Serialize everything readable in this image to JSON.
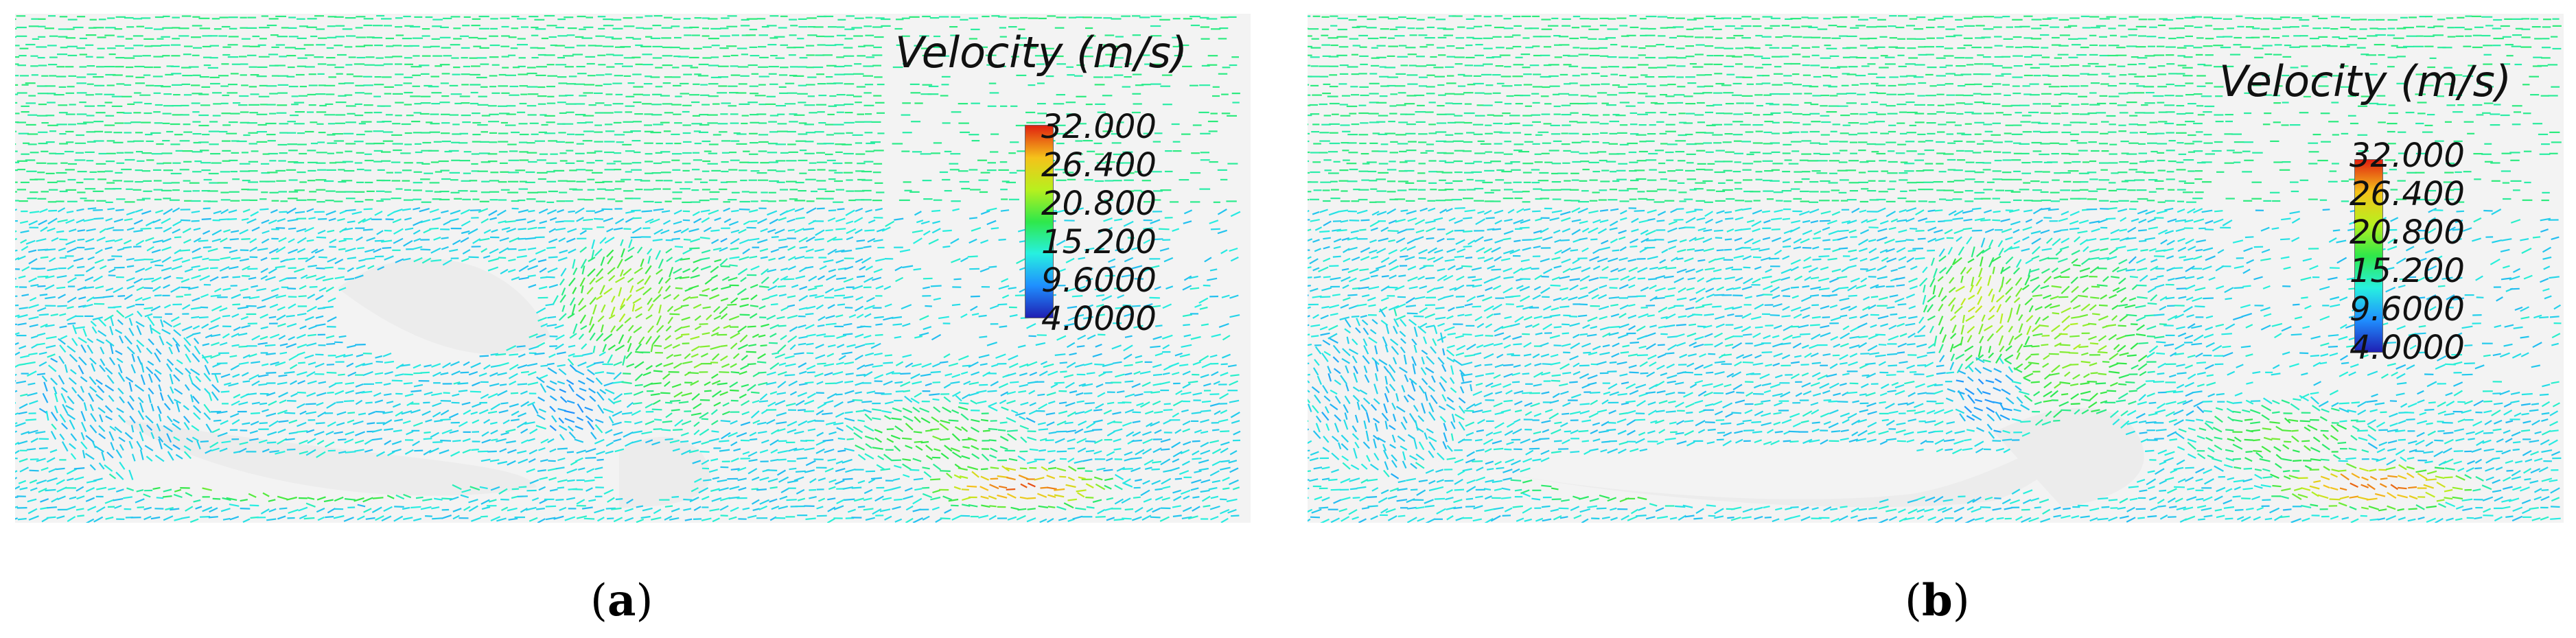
{
  "colorbar": {
    "title": "Velocity (m/s)",
    "ticks": [
      "32.000",
      "26.400",
      "20.800",
      "15.200",
      "9.6000",
      "4.0000"
    ],
    "min": 4.0,
    "max": 32.0,
    "colors": [
      "#1f1fb3",
      "#1f8fff",
      "#27f0e0",
      "#2fe84a",
      "#b8f01e",
      "#f5c21a",
      "#e02010"
    ]
  },
  "panels": [
    {
      "caption_open": "(",
      "caption_letter": "a",
      "caption_close": ")"
    },
    {
      "caption_open": "(",
      "caption_letter": "b",
      "caption_close": ")"
    }
  ]
}
